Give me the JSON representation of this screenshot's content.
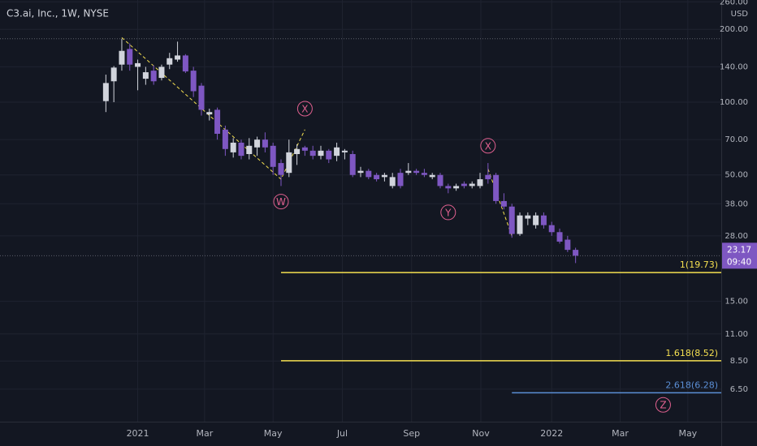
{
  "chart_data": {
    "type": "candlestick",
    "title": "C3.ai, Inc., 1W, NYSE",
    "currency": "USD",
    "log_scale": true,
    "grid": true,
    "up_color": "#d1d4dc",
    "down_color": "#7e57c2",
    "x": [
      -4,
      -3,
      -2,
      -1,
      0,
      1,
      2,
      3,
      4,
      5,
      6,
      7,
      8,
      9,
      10,
      11,
      12,
      13,
      14,
      15,
      16,
      17,
      18,
      19,
      20,
      21,
      22,
      23,
      24,
      25,
      26,
      27,
      28,
      29,
      30,
      31,
      32,
      33,
      34,
      35,
      36,
      37,
      38,
      39,
      40,
      41,
      42,
      43,
      44,
      45,
      46,
      47,
      48,
      49,
      50,
      51,
      52,
      53,
      54,
      55
    ],
    "open": [
      101,
      122,
      143,
      166,
      140,
      125,
      135,
      126,
      143,
      150,
      156,
      135,
      117,
      89,
      93,
      77,
      62,
      68,
      61,
      65,
      70,
      66,
      56,
      51,
      61,
      65,
      63,
      60,
      63,
      60,
      62,
      61,
      51,
      52,
      50,
      49,
      45,
      51,
      51,
      52,
      51,
      49,
      50,
      45,
      44,
      46,
      45,
      45,
      50,
      50,
      39,
      37,
      28.5,
      33,
      31,
      34,
      31,
      29,
      27,
      24.5
    ],
    "high": [
      130,
      141,
      183,
      175,
      150,
      140,
      142,
      143,
      160,
      178,
      158,
      140,
      120,
      94,
      95,
      80,
      71,
      70,
      71,
      72,
      75,
      68,
      58,
      70,
      67,
      66,
      66,
      66,
      64,
      68,
      64,
      63,
      54,
      53,
      51,
      51,
      51,
      53,
      56,
      53,
      53,
      51,
      51,
      46,
      46,
      47,
      47,
      51,
      56,
      51,
      42,
      38,
      35,
      35,
      35,
      35,
      32,
      30,
      28,
      25
    ],
    "low": [
      91,
      100,
      135,
      135,
      112,
      118,
      118,
      123,
      137,
      147,
      132,
      105,
      88,
      84,
      70,
      60,
      59,
      58,
      58,
      60,
      62,
      50,
      45,
      49,
      55,
      60,
      58,
      58,
      56,
      57,
      58,
      49,
      49,
      48,
      47,
      47,
      44,
      44,
      50,
      50,
      49,
      48,
      44,
      42,
      43,
      44,
      44,
      44,
      46,
      38,
      36,
      27.5,
      28,
      31,
      30,
      30,
      28,
      26,
      24,
      21.6
    ],
    "close": [
      120,
      139,
      163,
      143,
      145,
      133,
      122,
      140,
      152,
      156,
      134,
      111,
      93,
      91,
      74,
      64,
      68,
      60,
      66,
      70,
      65,
      54,
      50,
      62,
      64,
      63,
      60,
      63,
      58,
      65,
      63,
      50,
      52,
      49,
      48,
      50,
      49,
      45,
      52,
      51,
      50,
      50,
      45,
      44,
      45,
      45,
      46,
      48,
      48,
      39,
      37,
      28.5,
      34,
      34,
      34,
      31,
      29,
      26.5,
      24.5,
      23.17
    ],
    "xlim": [
      -17.3,
      73.3
    ],
    "xticks": [
      {
        "value": 0,
        "label": "2021"
      },
      {
        "value": 8.4,
        "label": "Mar"
      },
      {
        "value": 17,
        "label": "May"
      },
      {
        "value": 25.7,
        "label": "Jul"
      },
      {
        "value": 34.4,
        "label": "Sep"
      },
      {
        "value": 43.1,
        "label": "Nov"
      },
      {
        "value": 52,
        "label": "2022"
      },
      {
        "value": 60.6,
        "label": "Mar"
      },
      {
        "value": 69.1,
        "label": "May"
      }
    ],
    "ylim": [
      4.77,
      264.6
    ],
    "yticks": [
      {
        "value": 260,
        "label": "260.00"
      },
      {
        "value": 200,
        "label": "200.00"
      },
      {
        "value": 140,
        "label": "140.00"
      },
      {
        "value": 100,
        "label": "100.00"
      },
      {
        "value": 70,
        "label": "70.00"
      },
      {
        "value": 50,
        "label": "50.00"
      },
      {
        "value": 38,
        "label": "38.00"
      },
      {
        "value": 28,
        "label": "28.00"
      },
      {
        "value": 15,
        "label": "15.00"
      },
      {
        "value": 11,
        "label": "11.00"
      },
      {
        "value": 8.5,
        "label": "8.50"
      },
      {
        "value": 6.5,
        "label": "6.50"
      }
    ],
    "last_price": 23.17,
    "countdown": "09:40",
    "high_marker": 183,
    "fib_levels": [
      {
        "value": 19.73,
        "label": "1(19.73)",
        "x_start": 18,
        "color": "#f5e050"
      },
      {
        "value": 8.52,
        "label": "1.618(8.52)",
        "x_start": 18,
        "color": "#f5e050"
      },
      {
        "value": 6.28,
        "label": "2.618(6.28)",
        "x_start": 47,
        "color": "#5b8fd6"
      }
    ],
    "wave_lines": [
      {
        "x": [
          -2,
          18,
          21
        ],
        "y": [
          185,
          48,
          77
        ]
      },
      {
        "x": [
          44,
          47
        ],
        "y": [
          53,
          28
        ]
      }
    ],
    "wave_labels": [
      {
        "label": "W",
        "x": 18,
        "y": 38.8
      },
      {
        "label": "X",
        "x": 21,
        "y": 94
      },
      {
        "label": "Y",
        "x": 39,
        "y": 35
      },
      {
        "label": "X",
        "x": 44,
        "y": 66
      },
      {
        "label": "Z",
        "x": 66,
        "y": 5.6
      }
    ]
  }
}
